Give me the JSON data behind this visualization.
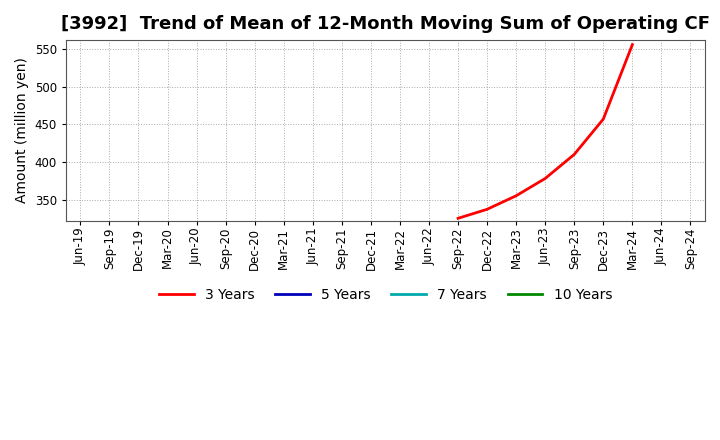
{
  "title": "[3992]  Trend of Mean of 12-Month Moving Sum of Operating CF",
  "ylabel": "Amount (million yen)",
  "background_color": "#ffffff",
  "grid_color": "#aaaaaa",
  "ylim": [
    322,
    562
  ],
  "yticks": [
    350,
    400,
    450,
    500,
    550
  ],
  "x_labels": [
    "Jun-19",
    "Sep-19",
    "Dec-19",
    "Mar-20",
    "Jun-20",
    "Sep-20",
    "Dec-20",
    "Mar-21",
    "Jun-21",
    "Sep-21",
    "Dec-21",
    "Mar-22",
    "Jun-22",
    "Sep-22",
    "Dec-22",
    "Mar-23",
    "Jun-23",
    "Sep-23",
    "Dec-23",
    "Mar-24",
    "Jun-24",
    "Sep-24"
  ],
  "series_3yr": {
    "label": "3 Years",
    "color": "#ff0000",
    "x_indices": [
      13,
      14,
      15,
      16,
      17,
      18,
      19
    ],
    "y_values": [
      325,
      337,
      355,
      378,
      410,
      457,
      556
    ]
  },
  "legend_colors": [
    "#ff0000",
    "#0000bb",
    "#00aaaa",
    "#008800"
  ],
  "legend_labels": [
    "3 Years",
    "5 Years",
    "7 Years",
    "10 Years"
  ],
  "line_width": 2.0,
  "title_fontsize": 13,
  "axis_fontsize": 10,
  "tick_fontsize": 8.5,
  "legend_fontsize": 10
}
